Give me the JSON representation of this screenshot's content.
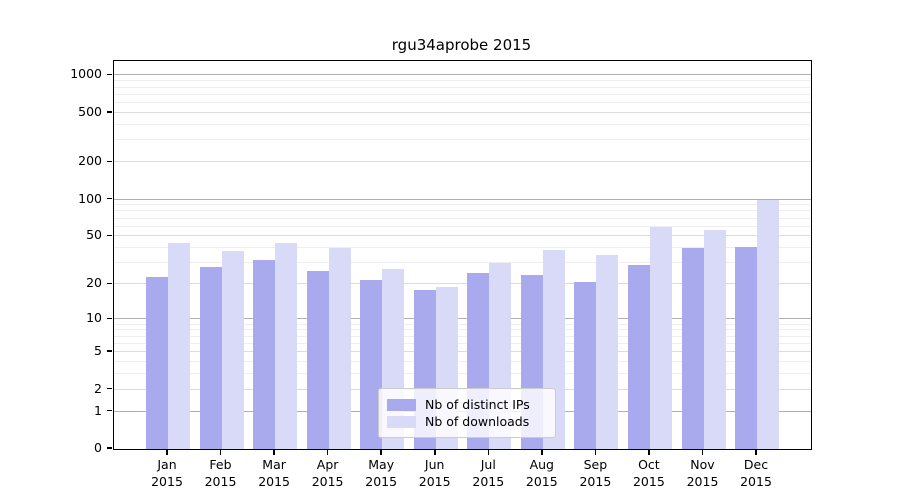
{
  "chart_data": {
    "type": "bar",
    "title": "rgu34aprobe 2015",
    "categories": [
      "Jan",
      "Feb",
      "Mar",
      "Apr",
      "May",
      "Jun",
      "Jul",
      "Aug",
      "Sep",
      "Oct",
      "Nov",
      "Dec"
    ],
    "x_sublabel": "2015",
    "series": [
      {
        "name": "Nb of distinct IPs",
        "color": "#a9a9ee",
        "values": [
          23,
          28,
          32,
          26,
          22,
          18,
          25,
          24,
          21,
          29,
          40,
          41
        ]
      },
      {
        "name": "Nb of downloads",
        "color": "#d9d9f8",
        "values": [
          44,
          38,
          44,
          40,
          27,
          19,
          30,
          39,
          35,
          60,
          56,
          100
        ]
      }
    ],
    "xlabel": "",
    "ylabel": "",
    "yscale": "log1p",
    "yticks": [
      0,
      1,
      2,
      5,
      10,
      20,
      50,
      100,
      200,
      500,
      1000
    ],
    "yminor_gridlines": [
      3,
      4,
      6,
      7,
      8,
      9,
      30,
      40,
      60,
      70,
      80,
      90,
      300,
      400,
      600,
      700,
      800,
      900
    ],
    "ylim": [
      0,
      1320
    ],
    "grid": true,
    "legend_position": "bottom-center"
  },
  "colors": {
    "grid_minor": "#eeeeee",
    "grid_major": "#dcdcdc",
    "grid_power10": "#b0b0b0",
    "axis": "#000000",
    "background": "#ffffff"
  }
}
